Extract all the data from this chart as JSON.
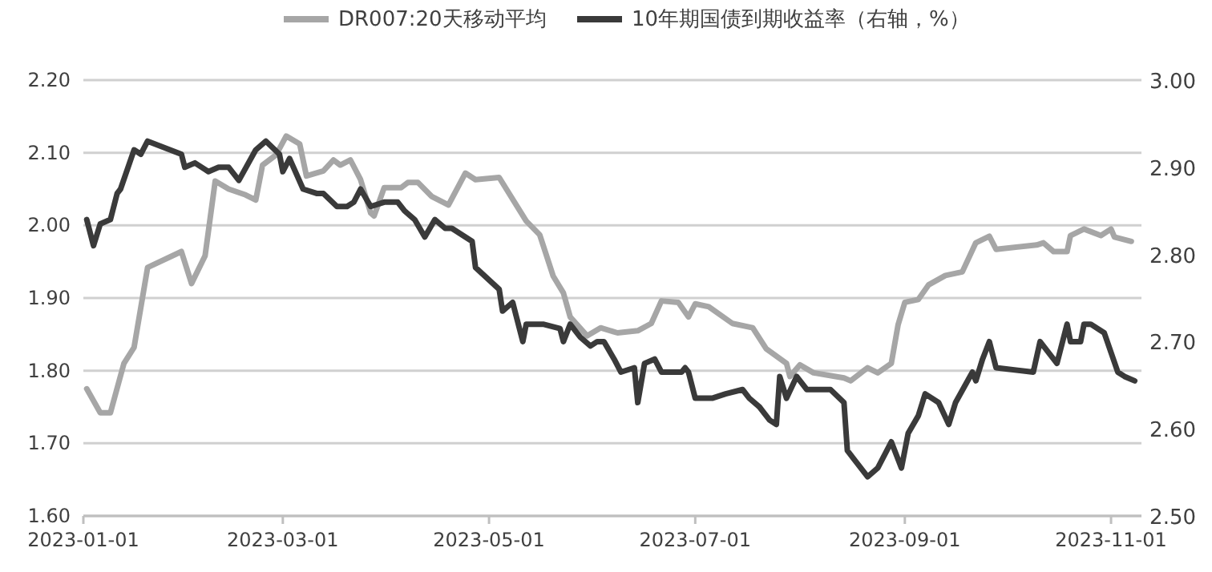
{
  "chart_data": {
    "type": "line",
    "series": [
      {
        "name": "DR007:20天移动平均",
        "color": "#a6a6a6",
        "x": [
          "2023-01-02",
          "2023-01-06",
          "2023-01-09",
          "2023-01-13",
          "2023-01-16",
          "2023-01-20",
          "2023-01-30",
          "2023-02-02",
          "2023-02-06",
          "2023-02-09",
          "2023-02-13",
          "2023-02-18",
          "2023-02-21",
          "2023-02-23",
          "2023-02-27",
          "2023-03-02",
          "2023-03-06",
          "2023-03-08",
          "2023-03-13",
          "2023-03-16",
          "2023-03-18",
          "2023-03-21",
          "2023-03-24",
          "2023-03-27",
          "2023-03-28",
          "2023-03-31",
          "2023-04-05",
          "2023-04-07",
          "2023-04-10",
          "2023-04-14",
          "2023-04-19",
          "2023-04-24",
          "2023-04-27",
          "2023-05-04",
          "2023-05-12",
          "2023-05-16",
          "2023-05-20",
          "2023-05-23",
          "2023-05-25",
          "2023-05-30",
          "2023-06-03",
          "2023-06-08",
          "2023-06-14",
          "2023-06-18",
          "2023-06-21",
          "2023-06-26",
          "2023-06-29",
          "2023-07-01",
          "2023-07-05",
          "2023-07-12",
          "2023-07-18",
          "2023-07-22",
          "2023-07-28",
          "2023-07-29",
          "2023-08-01",
          "2023-08-05",
          "2023-08-14",
          "2023-08-16",
          "2023-08-19",
          "2023-08-21",
          "2023-08-24",
          "2023-08-28",
          "2023-08-30",
          "2023-09-01",
          "2023-09-05",
          "2023-09-08",
          "2023-09-13",
          "2023-09-18",
          "2023-09-22",
          "2023-09-26",
          "2023-09-28",
          "2023-10-10",
          "2023-10-12",
          "2023-10-15",
          "2023-10-19",
          "2023-10-20",
          "2023-10-24",
          "2023-10-29",
          "2023-11-01",
          "2023-11-02",
          "2023-11-07"
        ],
        "values": [
          1.775,
          1.742,
          1.742,
          1.81,
          1.832,
          1.942,
          1.964,
          1.92,
          1.958,
          2.061,
          2.05,
          2.042,
          2.035,
          2.083,
          2.097,
          2.123,
          2.112,
          2.068,
          2.075,
          2.09,
          2.083,
          2.09,
          2.063,
          2.017,
          2.013,
          2.052,
          2.052,
          2.059,
          2.059,
          2.04,
          2.028,
          2.072,
          2.063,
          2.066,
          2.006,
          1.987,
          1.93,
          1.907,
          1.874,
          1.848,
          1.859,
          1.852,
          1.855,
          1.865,
          1.896,
          1.894,
          1.874,
          1.892,
          1.888,
          1.865,
          1.859,
          1.83,
          1.81,
          1.792,
          1.808,
          1.797,
          1.79,
          1.786,
          1.797,
          1.804,
          1.797,
          1.81,
          1.863,
          1.894,
          1.898,
          1.918,
          1.931,
          1.936,
          1.976,
          1.985,
          1.967,
          1.973,
          1.976,
          1.964,
          1.964,
          1.986,
          1.995,
          1.986,
          1.995,
          1.984,
          1.978
        ]
      },
      {
        "name": "10年期国债到期收益率（右轴，%）",
        "color": "#3a3a3a",
        "axis": "y2",
        "x": [
          "2023-01-02",
          "2023-01-04",
          "2023-01-06",
          "2023-01-09",
          "2023-01-11",
          "2023-01-12",
          "2023-01-16",
          "2023-01-18",
          "2023-01-20",
          "2023-01-30",
          "2023-01-31",
          "2023-02-03",
          "2023-02-07",
          "2023-02-10",
          "2023-02-13",
          "2023-02-16",
          "2023-02-21",
          "2023-02-24",
          "2023-02-28",
          "2023-03-01",
          "2023-03-03",
          "2023-03-07",
          "2023-03-11",
          "2023-03-13",
          "2023-03-17",
          "2023-03-20",
          "2023-03-22",
          "2023-03-24",
          "2023-03-27",
          "2023-03-31",
          "2023-04-04",
          "2023-04-06",
          "2023-04-09",
          "2023-04-12",
          "2023-04-15",
          "2023-04-18",
          "2023-04-20",
          "2023-04-26",
          "2023-04-27",
          "2023-05-04",
          "2023-05-05",
          "2023-05-08",
          "2023-05-09",
          "2023-05-11",
          "2023-05-12",
          "2023-05-17",
          "2023-05-22",
          "2023-05-23",
          "2023-05-25",
          "2023-05-28",
          "2023-05-31",
          "2023-06-02",
          "2023-06-04",
          "2023-06-07",
          "2023-06-09",
          "2023-06-13",
          "2023-06-14",
          "2023-06-16",
          "2023-06-19",
          "2023-06-21",
          "2023-06-27",
          "2023-06-28",
          "2023-06-29",
          "2023-07-01",
          "2023-07-06",
          "2023-07-10",
          "2023-07-15",
          "2023-07-17",
          "2023-07-20",
          "2023-07-23",
          "2023-07-25",
          "2023-07-26",
          "2023-07-28",
          "2023-07-31",
          "2023-08-03",
          "2023-08-06",
          "2023-08-10",
          "2023-08-14",
          "2023-08-15",
          "2023-08-17",
          "2023-08-21",
          "2023-08-24",
          "2023-08-28",
          "2023-08-31",
          "2023-09-02",
          "2023-09-05",
          "2023-09-07",
          "2023-09-11",
          "2023-09-14",
          "2023-09-16",
          "2023-09-21",
          "2023-09-22",
          "2023-09-24",
          "2023-09-26",
          "2023-09-28",
          "2023-10-09",
          "2023-10-11",
          "2023-10-16",
          "2023-10-19",
          "2023-10-20",
          "2023-10-23",
          "2023-10-24",
          "2023-10-26",
          "2023-10-30",
          "2023-11-03",
          "2023-11-05",
          "2023-11-08"
        ],
        "values": [
          2.84,
          2.81,
          2.835,
          2.84,
          2.87,
          2.875,
          2.92,
          2.915,
          2.93,
          2.915,
          2.9,
          2.905,
          2.895,
          2.9,
          2.9,
          2.885,
          2.92,
          2.93,
          2.915,
          2.895,
          2.91,
          2.875,
          2.87,
          2.87,
          2.855,
          2.855,
          2.86,
          2.875,
          2.855,
          2.86,
          2.86,
          2.85,
          2.84,
          2.82,
          2.84,
          2.83,
          2.83,
          2.815,
          2.785,
          2.76,
          2.735,
          2.745,
          2.73,
          2.7,
          2.72,
          2.72,
          2.715,
          2.7,
          2.72,
          2.705,
          2.695,
          2.7,
          2.7,
          2.68,
          2.665,
          2.67,
          2.63,
          2.675,
          2.68,
          2.665,
          2.665,
          2.67,
          2.665,
          2.635,
          2.635,
          2.64,
          2.645,
          2.635,
          2.625,
          2.61,
          2.605,
          2.66,
          2.635,
          2.66,
          2.645,
          2.645,
          2.645,
          2.63,
          2.575,
          2.565,
          2.545,
          2.555,
          2.585,
          2.555,
          2.595,
          2.615,
          2.64,
          2.63,
          2.605,
          2.63,
          2.665,
          2.655,
          2.68,
          2.7,
          2.67,
          2.665,
          2.7,
          2.675,
          2.72,
          2.7,
          2.7,
          2.72,
          2.72,
          2.71,
          2.665,
          2.66,
          2.655
        ]
      }
    ],
    "xlim": [
      "2023-01-01",
      "2023-11-10"
    ],
    "xticks": [
      "2023-01-01",
      "2023-03-01",
      "2023-05-01",
      "2023-07-01",
      "2023-09-01",
      "2023-11-01"
    ],
    "ylim": [
      1.6,
      2.2
    ],
    "yticks": [
      {
        "value": 1.6,
        "label": "1.60"
      },
      {
        "value": 1.7,
        "label": "1.70"
      },
      {
        "value": 1.8,
        "label": "1.80"
      },
      {
        "value": 1.9,
        "label": "1.90"
      },
      {
        "value": 2.0,
        "label": "2.00"
      },
      {
        "value": 2.1,
        "label": "2.10"
      },
      {
        "value": 2.2,
        "label": "2.20"
      }
    ],
    "y2lim": [
      2.5,
      3.0
    ],
    "y2ticks": [
      {
        "value": 2.5,
        "label": "2.50"
      },
      {
        "value": 2.6,
        "label": "2.60"
      },
      {
        "value": 2.7,
        "label": "2.70"
      },
      {
        "value": 2.8,
        "label": "2.80"
      },
      {
        "value": 2.9,
        "label": "2.90"
      },
      {
        "value": 3.0,
        "label": "3.00"
      }
    ],
    "grid": "y",
    "legend": "top",
    "marker": "none",
    "line_style": "solid"
  }
}
